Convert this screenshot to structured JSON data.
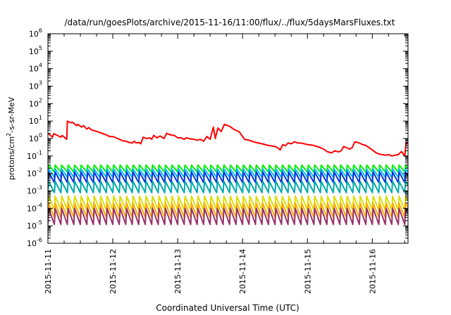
{
  "chart_data": {
    "type": "line",
    "title": "/data/run/goesPlots/archive/2015-11-16/11:00/flux/../flux/5daysMarsFluxes.txt",
    "xlabel": "Coordinated Universal Time (UTC)",
    "ylabel_prefix": "protons/cm",
    "ylabel_sup": "2",
    "ylabel_suffix": "-s-sr-MeV",
    "y_scale": "log",
    "ylim": [
      1e-06,
      1000000.0
    ],
    "y_ticks": [
      {
        "base": "10",
        "exp": "-6"
      },
      {
        "base": "10",
        "exp": "-5"
      },
      {
        "base": "10",
        "exp": "-4"
      },
      {
        "base": "10",
        "exp": "-3"
      },
      {
        "base": "10",
        "exp": "-2"
      },
      {
        "base": "10",
        "exp": "-1"
      },
      {
        "base": "10",
        "exp": "0"
      },
      {
        "base": "10",
        "exp": "1"
      },
      {
        "base": "10",
        "exp": "2"
      },
      {
        "base": "10",
        "exp": "3"
      },
      {
        "base": "10",
        "exp": "4"
      },
      {
        "base": "10",
        "exp": "5"
      },
      {
        "base": "10",
        "exp": "6"
      }
    ],
    "x_ticks": [
      "2015-11-11",
      "2015-11-12",
      "2015-11-13",
      "2015-11-14",
      "2015-11-15",
      "2015-11-16"
    ],
    "x_tick_days": [
      0,
      1,
      2,
      3,
      4,
      5
    ],
    "x_range_days": [
      0,
      5.55
    ],
    "grid": false,
    "legend": "none",
    "series": [
      {
        "color": "#ff0000",
        "points": [
          [
            0,
            2.0
          ],
          [
            0.07,
            1.2
          ],
          [
            0.09,
            1.9
          ],
          [
            0.2,
            1.2
          ],
          [
            0.22,
            1.5
          ],
          [
            0.29,
            0.9
          ],
          [
            0.3,
            10
          ],
          [
            0.35,
            8
          ],
          [
            0.38,
            8.5
          ],
          [
            0.44,
            5.5
          ],
          [
            0.46,
            6.5
          ],
          [
            0.52,
            4.5
          ],
          [
            0.55,
            5.5
          ],
          [
            0.6,
            3.5
          ],
          [
            0.63,
            4.2
          ],
          [
            0.68,
            3.0
          ],
          [
            0.72,
            2.8
          ],
          [
            0.8,
            2.2
          ],
          [
            0.85,
            1.9
          ],
          [
            0.9,
            1.6
          ],
          [
            0.95,
            1.3
          ],
          [
            1.0,
            1.3
          ],
          [
            1.05,
            1.1
          ],
          [
            1.1,
            0.9
          ],
          [
            1.15,
            0.75
          ],
          [
            1.2,
            0.7
          ],
          [
            1.25,
            0.6
          ],
          [
            1.3,
            0.55
          ],
          [
            1.33,
            0.7
          ],
          [
            1.36,
            0.55
          ],
          [
            1.4,
            0.6
          ],
          [
            1.43,
            0.5
          ],
          [
            1.47,
            1.2
          ],
          [
            1.52,
            1.0
          ],
          [
            1.57,
            1.1
          ],
          [
            1.6,
            0.9
          ],
          [
            1.63,
            1.5
          ],
          [
            1.68,
            1.1
          ],
          [
            1.73,
            1.4
          ],
          [
            1.79,
            1.0
          ],
          [
            1.83,
            2.0
          ],
          [
            1.89,
            1.6
          ],
          [
            1.95,
            1.5
          ],
          [
            2.0,
            1.1
          ],
          [
            2.05,
            1.1
          ],
          [
            2.1,
            0.9
          ],
          [
            2.13,
            1.1
          ],
          [
            2.2,
            0.95
          ],
          [
            2.25,
            0.9
          ],
          [
            2.3,
            0.8
          ],
          [
            2.35,
            0.9
          ],
          [
            2.4,
            0.7
          ],
          [
            2.45,
            1.3
          ],
          [
            2.5,
            0.9
          ],
          [
            2.55,
            4.5
          ],
          [
            2.58,
            1.0
          ],
          [
            2.62,
            4.0
          ],
          [
            2.67,
            2.5
          ],
          [
            2.72,
            6.5
          ],
          [
            2.8,
            5.0
          ],
          [
            2.86,
            3.5
          ],
          [
            2.95,
            2.4
          ],
          [
            3.03,
            0.9
          ],
          [
            3.1,
            0.8
          ],
          [
            3.2,
            0.6
          ],
          [
            3.3,
            0.5
          ],
          [
            3.4,
            0.4
          ],
          [
            3.5,
            0.35
          ],
          [
            3.55,
            0.28
          ],
          [
            3.58,
            0.22
          ],
          [
            3.62,
            0.45
          ],
          [
            3.66,
            0.38
          ],
          [
            3.7,
            0.55
          ],
          [
            3.75,
            0.5
          ],
          [
            3.8,
            0.65
          ],
          [
            3.85,
            0.55
          ],
          [
            3.9,
            0.55
          ],
          [
            4.0,
            0.45
          ],
          [
            4.1,
            0.4
          ],
          [
            4.2,
            0.3
          ],
          [
            4.25,
            0.25
          ],
          [
            4.3,
            0.18
          ],
          [
            4.37,
            0.15
          ],
          [
            4.42,
            0.2
          ],
          [
            4.48,
            0.17
          ],
          [
            4.52,
            0.2
          ],
          [
            4.56,
            0.35
          ],
          [
            4.6,
            0.3
          ],
          [
            4.65,
            0.25
          ],
          [
            4.69,
            0.3
          ],
          [
            4.73,
            0.65
          ],
          [
            4.8,
            0.55
          ],
          [
            4.85,
            0.45
          ],
          [
            4.9,
            0.4
          ],
          [
            4.95,
            0.3
          ],
          [
            5.0,
            0.22
          ],
          [
            5.05,
            0.16
          ],
          [
            5.1,
            0.13
          ],
          [
            5.2,
            0.11
          ],
          [
            5.25,
            0.12
          ],
          [
            5.3,
            0.1
          ],
          [
            5.35,
            0.11
          ],
          [
            5.4,
            0.12
          ],
          [
            5.45,
            0.18
          ],
          [
            5.5,
            0.1
          ],
          [
            5.52,
            0.55
          ],
          [
            5.55,
            0.5
          ]
        ]
      },
      {
        "color": "#00ee00",
        "sawtooth": {
          "top": 0.03,
          "bottom": 0.012,
          "period": 0.1
        }
      },
      {
        "color": "#00bbff",
        "sawtooth": {
          "top": 0.018,
          "bottom": 0.006,
          "period": 0.1
        }
      },
      {
        "color": "#0033dd",
        "sawtooth": {
          "top": 0.012,
          "bottom": 0.003,
          "period": 0.1
        }
      },
      {
        "color": "#00aaaa",
        "sawtooth": {
          "top": 0.0035,
          "bottom": 0.0008,
          "period": 0.1
        }
      },
      {
        "color": "#dddd00",
        "sawtooth": {
          "top": 0.0005,
          "bottom": 8e-05,
          "period": 0.1
        }
      },
      {
        "color": "#ffaa00",
        "sawtooth": {
          "top": 0.0002,
          "bottom": 3e-05,
          "period": 0.1
        }
      },
      {
        "color": "#993366",
        "sawtooth": {
          "top": 0.0001,
          "bottom": 1.2e-05,
          "period": 0.1
        }
      }
    ]
  }
}
